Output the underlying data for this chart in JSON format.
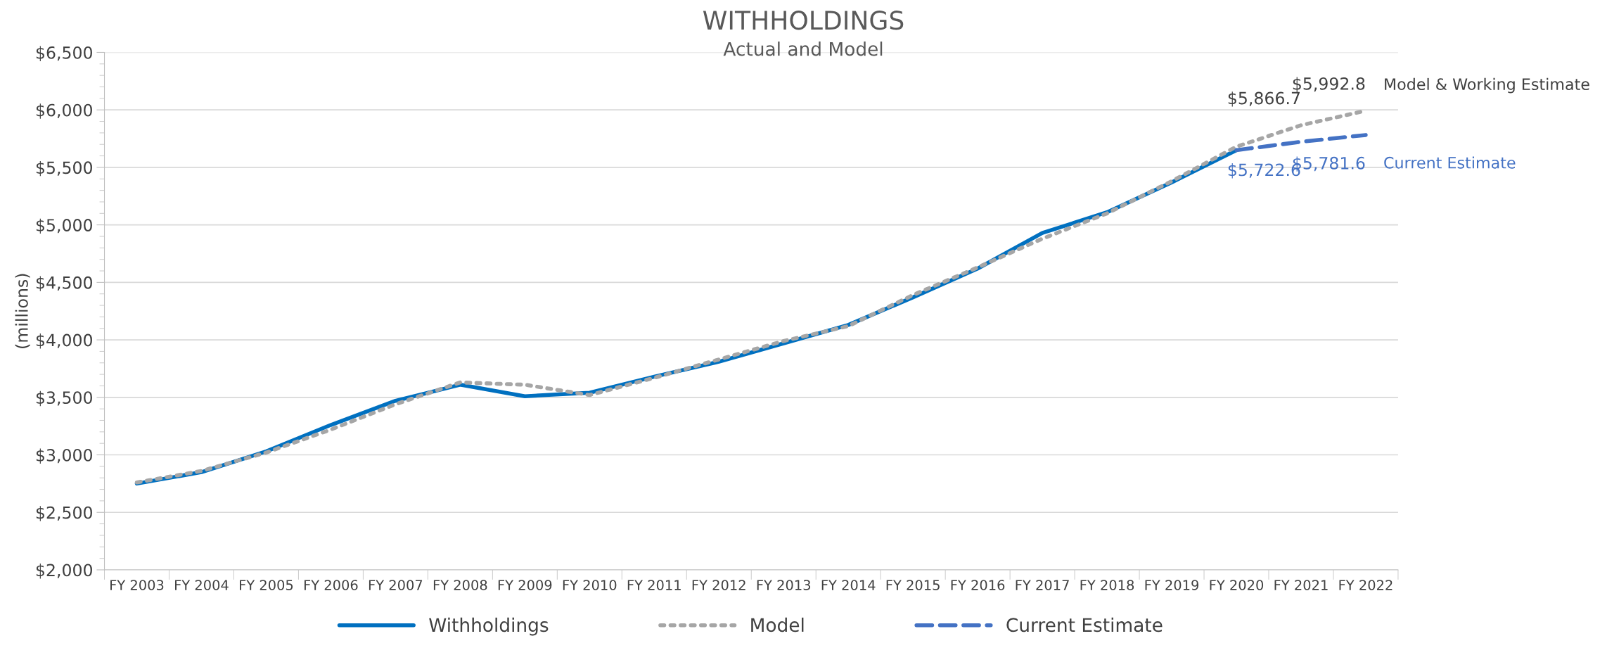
{
  "chart_data": {
    "type": "line",
    "title": "WITHHOLDINGS",
    "subtitle": "Actual and Model",
    "ylabel": "(millions)",
    "categories": [
      "FY 2003",
      "FY 2004",
      "FY 2005",
      "FY 2006",
      "FY 2007",
      "FY 2008",
      "FY 2009",
      "FY 2010",
      "FY 2011",
      "FY 2012",
      "FY 2013",
      "FY 2014",
      "FY 2015",
      "FY 2016",
      "FY 2017",
      "FY 2018",
      "FY 2019",
      "FY 2020",
      "FY 2021",
      "FY 2022"
    ],
    "series": [
      {
        "name": "Withholdings",
        "color": "#0070c0",
        "line_style": "solid",
        "values": [
          2750,
          2850,
          3030,
          3260,
          3470,
          3610,
          3510,
          3540,
          3680,
          3810,
          3970,
          4130,
          4370,
          4620,
          4930,
          5110,
          5370,
          5650,
          null,
          null
        ]
      },
      {
        "name": "Model",
        "color": "#a6a6a6",
        "line_style": "dotted",
        "values": [
          2760,
          2860,
          3020,
          3220,
          3440,
          3630,
          3610,
          3520,
          3670,
          3830,
          3990,
          4120,
          4390,
          4630,
          4880,
          5100,
          5380,
          5680,
          5866.7,
          5992.8
        ],
        "value_labels": [
          null,
          null,
          null,
          null,
          null,
          null,
          null,
          null,
          null,
          null,
          null,
          null,
          null,
          null,
          null,
          null,
          null,
          null,
          "$5,866.7",
          "$5,992.8"
        ]
      },
      {
        "name": "Current Estimate",
        "color": "#4472c4",
        "line_style": "dashed",
        "values": [
          null,
          null,
          null,
          null,
          null,
          null,
          null,
          null,
          null,
          null,
          null,
          null,
          null,
          null,
          null,
          null,
          null,
          5650,
          5722.6,
          5781.6
        ],
        "value_labels": [
          null,
          null,
          null,
          null,
          null,
          null,
          null,
          null,
          null,
          null,
          null,
          null,
          null,
          null,
          null,
          null,
          null,
          null,
          "$5,722.6",
          "$5,781.6"
        ]
      }
    ],
    "annotations": [
      {
        "text": "Model & Working Estimate",
        "x": "FY 2022",
        "y": 5992.8
      },
      {
        "text": "Current Estimate",
        "x": "FY 2022",
        "y": 5781.6
      }
    ],
    "ylim": [
      2000,
      6500
    ],
    "yticks": [
      {
        "value": 2000,
        "label": "$2,000"
      },
      {
        "value": 2500,
        "label": "$2,500"
      },
      {
        "value": 3000,
        "label": "$3,000"
      },
      {
        "value": 3500,
        "label": "$3,500"
      },
      {
        "value": 4000,
        "label": "$4,000"
      },
      {
        "value": 4500,
        "label": "$4,500"
      },
      {
        "value": 5000,
        "label": "$5,000"
      },
      {
        "value": 5500,
        "label": "$5,500"
      },
      {
        "value": 6000,
        "label": "$6,000"
      },
      {
        "value": 6500,
        "label": "$6,500"
      }
    ],
    "grid": "y",
    "legend": "bottom",
    "marker": "none"
  }
}
